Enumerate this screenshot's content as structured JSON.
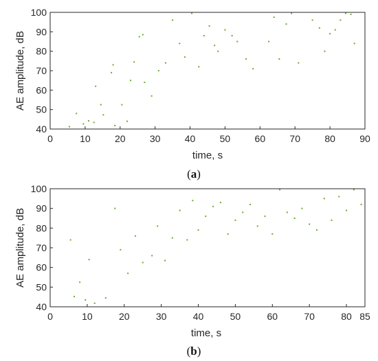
{
  "colors": {
    "points": "#6aaa2a",
    "axes": "#262626",
    "background": "#ffffff"
  },
  "captions": {
    "a": "a",
    "b": "b"
  },
  "chart_data": [
    {
      "type": "scatter",
      "panel": "a",
      "xlabel": "time, s",
      "ylabel": "AE amplitude, dB",
      "xlim": [
        0,
        90
      ],
      "ylim": [
        40,
        100
      ],
      "xticks": [
        0,
        10,
        20,
        30,
        40,
        50,
        60,
        70,
        80,
        90
      ],
      "yticks": [
        40,
        50,
        60,
        70,
        80,
        90,
        100
      ],
      "grid": false,
      "legend": "none",
      "series": [
        {
          "points": [
            [
              5.5,
              41.2
            ],
            [
              7.5,
              48.0
            ],
            [
              9.5,
              42.6
            ],
            [
              11.0,
              44.2
            ],
            [
              12.5,
              43.4
            ],
            [
              13.0,
              62.0
            ],
            [
              14.5,
              52.5
            ],
            [
              15.2,
              47.3
            ],
            [
              17.5,
              69.0
            ],
            [
              18.0,
              73.0
            ],
            [
              18.5,
              41.8
            ],
            [
              20.5,
              52.5
            ],
            [
              22.0,
              44.0
            ],
            [
              23.0,
              65.0
            ],
            [
              24.0,
              74.5
            ],
            [
              25.5,
              87.5
            ],
            [
              26.5,
              88.5
            ],
            [
              27.0,
              64.0
            ],
            [
              29.0,
              57.0
            ],
            [
              31.0,
              70.0
            ],
            [
              33.0,
              74.0
            ],
            [
              35.0,
              96.0
            ],
            [
              37.0,
              84.0
            ],
            [
              38.5,
              77.0
            ],
            [
              40.5,
              99.5
            ],
            [
              42.5,
              72.0
            ],
            [
              44.0,
              88.0
            ],
            [
              45.5,
              93.0
            ],
            [
              47.0,
              83.0
            ],
            [
              48.0,
              80.0
            ],
            [
              50.0,
              91.0
            ],
            [
              52.0,
              88.0
            ],
            [
              53.5,
              85.0
            ],
            [
              56.0,
              76.0
            ],
            [
              58.0,
              71.0
            ],
            [
              62.5,
              85.0
            ],
            [
              64.0,
              97.5
            ],
            [
              65.5,
              76.0
            ],
            [
              67.5,
              94.0
            ],
            [
              69.0,
              99.5
            ],
            [
              71.0,
              74.0
            ],
            [
              75.0,
              96.0
            ],
            [
              77.0,
              92.0
            ],
            [
              78.5,
              80.0
            ],
            [
              80.0,
              89.0
            ],
            [
              81.5,
              91.0
            ],
            [
              83.0,
              96.0
            ],
            [
              84.5,
              99.5
            ],
            [
              86.0,
              99.0
            ],
            [
              87.0,
              84.0
            ]
          ]
        }
      ]
    },
    {
      "type": "scatter",
      "panel": "b",
      "xlabel": "time, s",
      "ylabel": "AE amplitude, dB",
      "xlim": [
        0,
        85
      ],
      "ylim": [
        40,
        100
      ],
      "xticks": [
        0,
        10,
        20,
        30,
        40,
        50,
        60,
        70,
        80,
        85
      ],
      "yticks": [
        40,
        50,
        60,
        70,
        80,
        90,
        100
      ],
      "grid": false,
      "legend": "none",
      "series": [
        {
          "points": [
            [
              5.5,
              74.0
            ],
            [
              6.5,
              45.2
            ],
            [
              8.0,
              52.5
            ],
            [
              9.5,
              43.5
            ],
            [
              10.5,
              64.0
            ],
            [
              12.0,
              41.8
            ],
            [
              15.0,
              44.5
            ],
            [
              17.5,
              90.0
            ],
            [
              19.0,
              69.0
            ],
            [
              21.0,
              57.0
            ],
            [
              23.0,
              76.0
            ],
            [
              25.0,
              62.5
            ],
            [
              27.5,
              66.0
            ],
            [
              29.0,
              81.0
            ],
            [
              31.0,
              63.5
            ],
            [
              33.0,
              75.0
            ],
            [
              35.0,
              89.0
            ],
            [
              37.0,
              74.0
            ],
            [
              38.5,
              94.0
            ],
            [
              40.0,
              79.0
            ],
            [
              42.0,
              86.0
            ],
            [
              44.0,
              91.0
            ],
            [
              46.0,
              93.0
            ],
            [
              48.0,
              77.0
            ],
            [
              50.0,
              84.0
            ],
            [
              52.0,
              88.0
            ],
            [
              54.0,
              92.0
            ],
            [
              56.0,
              81.0
            ],
            [
              58.0,
              86.0
            ],
            [
              60.0,
              77.0
            ],
            [
              62.0,
              99.5
            ],
            [
              64.0,
              88.0
            ],
            [
              66.0,
              85.0
            ],
            [
              68.0,
              90.0
            ],
            [
              70.0,
              82.0
            ],
            [
              72.0,
              79.0
            ],
            [
              74.0,
              95.0
            ],
            [
              76.0,
              84.0
            ],
            [
              78.0,
              96.0
            ],
            [
              80.0,
              89.0
            ],
            [
              82.0,
              99.5
            ],
            [
              84.0,
              92.0
            ]
          ]
        }
      ]
    }
  ]
}
